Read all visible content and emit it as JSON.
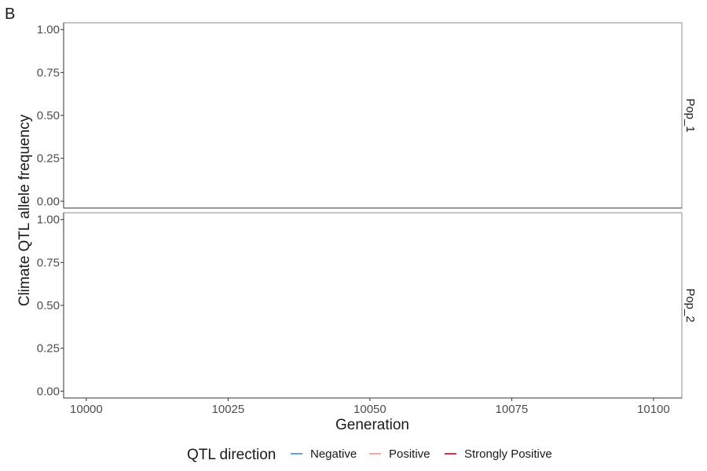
{
  "chart_data": {
    "type": "line",
    "tag": "B",
    "title": "",
    "xlabel": "Generation",
    "ylabel": "Climate QTL allele frequency",
    "xlim": [
      9996,
      10105
    ],
    "ylim": [
      -0.04,
      1.04
    ],
    "x_ticks": [
      10000,
      10025,
      10050,
      10075,
      10100
    ],
    "y_ticks": [
      0.0,
      0.25,
      0.5,
      0.75,
      1.0
    ],
    "y_tick_labels": [
      "0.00",
      "0.25",
      "0.50",
      "0.75",
      "1.00"
    ],
    "facets": [
      "Pop_1",
      "Pop_2"
    ],
    "grid": false,
    "legend": {
      "title": "QTL direction",
      "position": "bottom",
      "entries": [
        {
          "label": "Negative",
          "color": "#6a9ed6"
        },
        {
          "label": "Positive",
          "color": "#f4aaa0"
        },
        {
          "label": "Strongly Positive",
          "color": "#d9343a"
        }
      ]
    },
    "series": []
  }
}
